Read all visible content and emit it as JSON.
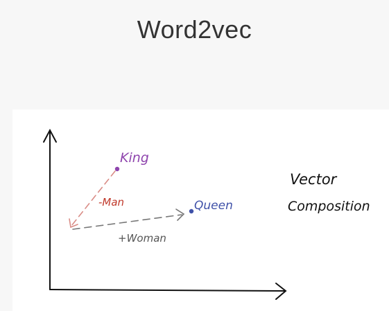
{
  "slide": {
    "title": "Word2vec"
  },
  "diagram": {
    "labels": {
      "king": "King",
      "queen": "Queen",
      "minus_man": "-Man",
      "plus_woman": "+Woman",
      "note_line1": "Vector",
      "note_line2": "Composition"
    },
    "colors": {
      "king": "#8e44ad",
      "queen": "#3f51a8",
      "minus_man": "#c0392b",
      "minus_man_line": "#d98c86",
      "plus_woman": "#555555",
      "plus_woman_line": "#777777",
      "axes": "#111111",
      "note": "#111111"
    }
  }
}
